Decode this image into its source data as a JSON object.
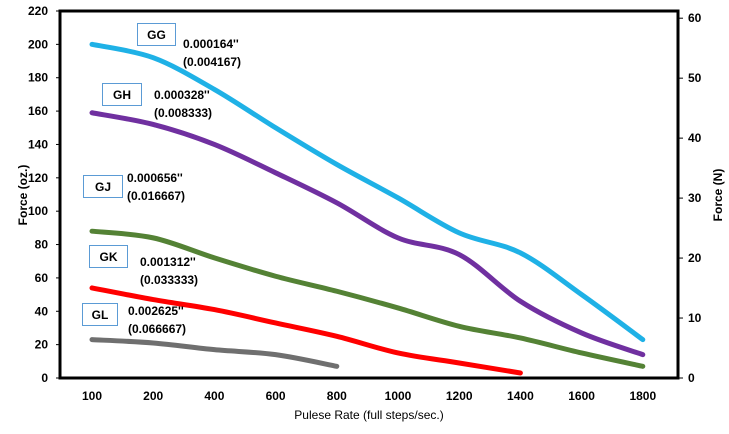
{
  "chart_data": {
    "type": "line",
    "categories": [
      "100",
      "200",
      "400",
      "600",
      "800",
      "1000",
      "1200",
      "1400",
      "1600",
      "1800"
    ],
    "xlabel": "Pulese Rate (full steps/sec.)",
    "ylabel": "Force (oz.)",
    "y2label": "Force (N)",
    "ylim": [
      0,
      220
    ],
    "yticks": [
      0,
      20,
      40,
      60,
      80,
      100,
      120,
      140,
      160,
      180,
      200,
      220
    ],
    "y2lim": [
      0,
      61.2
    ],
    "y2ticks": [
      0,
      10,
      20,
      30,
      40,
      50,
      60
    ],
    "grid": false,
    "series": [
      {
        "name": "GG",
        "color": "#1fb1e6",
        "values": [
          200,
          192,
          173,
          150,
          128,
          108,
          87,
          75,
          50,
          23
        ]
      },
      {
        "name": "GH",
        "color": "#7030a0",
        "values": [
          159,
          152,
          140,
          123,
          105,
          84,
          74,
          46,
          27,
          14
        ]
      },
      {
        "name": "GJ",
        "color": "#548235",
        "values": [
          88,
          84,
          72,
          61,
          52,
          42,
          31,
          24,
          15,
          7
        ]
      },
      {
        "name": "GK",
        "color": "#ff0000",
        "values": [
          54,
          47,
          41,
          33,
          25,
          15,
          9,
          3,
          null,
          null
        ]
      },
      {
        "name": "GL",
        "color": "#6f6f6f",
        "values": [
          23,
          21,
          17,
          14,
          7,
          null,
          null,
          null,
          null,
          null
        ]
      }
    ],
    "annotations": [
      {
        "label": "GG",
        "line1": "0.000164''",
        "line2": "(0.004167)"
      },
      {
        "label": "GH",
        "line1": "0.000328''",
        "line2": "(0.008333)"
      },
      {
        "label": "GJ",
        "line1": "0.000656''",
        "line2": "(0.016667)"
      },
      {
        "label": "GK",
        "line1": "0.001312''",
        "line2": "(0.033333)"
      },
      {
        "label": "GL",
        "line1": "0.002625''",
        "line2": "(0.066667)"
      }
    ]
  }
}
